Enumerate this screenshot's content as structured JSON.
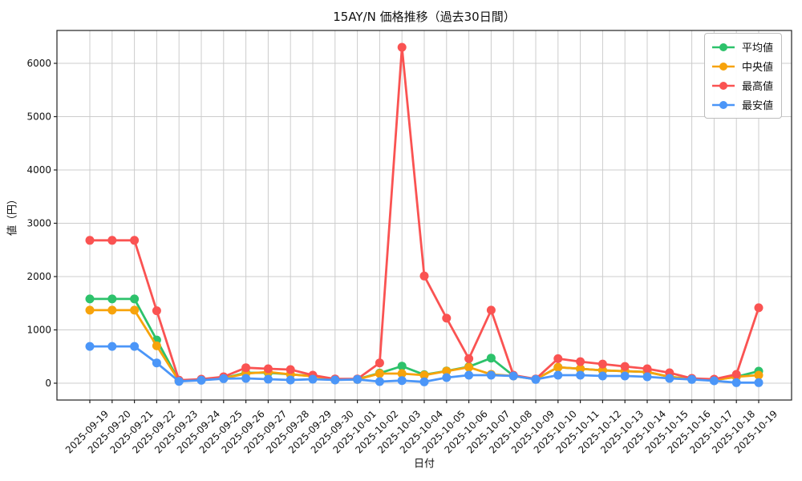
{
  "chart_data": {
    "type": "line",
    "title": "15AY/N 価格推移（過去30日間）",
    "xlabel": "日付",
    "ylabel": "値（円）",
    "x": [
      "2025-09-19",
      "2025-09-20",
      "2025-09-21",
      "2025-09-22",
      "2025-09-23",
      "2025-09-24",
      "2025-09-25",
      "2025-09-26",
      "2025-09-27",
      "2025-09-28",
      "2025-09-29",
      "2025-09-30",
      "2025-10-01",
      "2025-10-02",
      "2025-10-03",
      "2025-10-04",
      "2025-10-05",
      "2025-10-06",
      "2025-10-07",
      "2025-10-08",
      "2025-10-09",
      "2025-10-10",
      "2025-10-11",
      "2025-10-12",
      "2025-10-13",
      "2025-10-14",
      "2025-10-15",
      "2025-10-16",
      "2025-10-17",
      "2025-10-18",
      "2025-10-19"
    ],
    "series": [
      {
        "name": "平均値",
        "color": "#2dc26b",
        "values": [
          1580,
          1580,
          1580,
          810,
          45,
          65,
          95,
          195,
          195,
          165,
          135,
          70,
          75,
          190,
          320,
          160,
          230,
          310,
          470,
          140,
          75,
          300,
          270,
          240,
          225,
          210,
          120,
          80,
          60,
          120,
          225
        ]
      },
      {
        "name": "中央値",
        "color": "#f7a30b",
        "values": [
          1370,
          1370,
          1370,
          700,
          40,
          60,
          90,
          180,
          210,
          165,
          130,
          65,
          70,
          180,
          180,
          150,
          225,
          300,
          165,
          135,
          75,
          300,
          270,
          240,
          225,
          210,
          120,
          75,
          55,
          120,
          150
        ]
      },
      {
        "name": "最高値",
        "color": "#fa5352",
        "values": [
          2680,
          2680,
          2680,
          1360,
          55,
          75,
          120,
          290,
          270,
          255,
          150,
          80,
          80,
          380,
          6300,
          2010,
          1220,
          460,
          1370,
          150,
          80,
          460,
          405,
          360,
          315,
          270,
          195,
          90,
          75,
          165,
          1415
        ]
      },
      {
        "name": "最安値",
        "color": "#4b96f8",
        "values": [
          690,
          690,
          690,
          380,
          35,
          55,
          85,
          90,
          75,
          60,
          75,
          60,
          70,
          30,
          50,
          25,
          105,
          150,
          150,
          135,
          70,
          150,
          150,
          135,
          135,
          120,
          90,
          70,
          45,
          10,
          10
        ]
      }
    ],
    "yticks": [
      0,
      1000,
      2000,
      3000,
      4000,
      5000,
      6000
    ],
    "ylim": [
      -315,
      6615
    ],
    "grid": true,
    "grid_color": "#cccccc",
    "spine_color": "#222222",
    "legend_position": "top-right"
  }
}
